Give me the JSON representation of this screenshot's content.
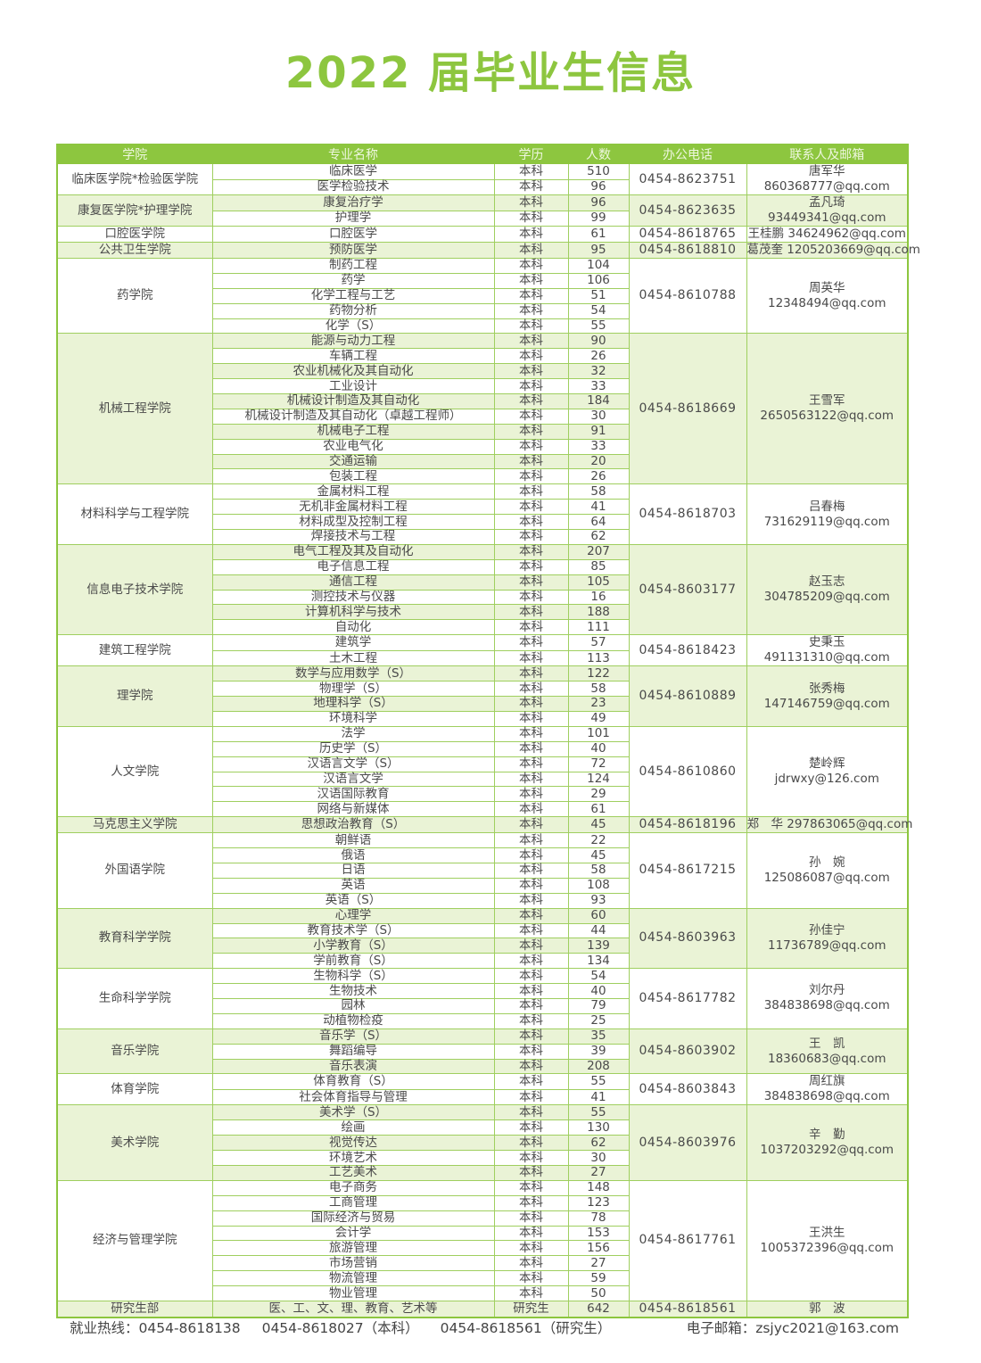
{
  "title": "2022 届毕业生信息",
  "colors": {
    "accent": "#8dc63f",
    "row_tint": "#eaf3d6"
  },
  "headers": [
    "学院",
    "专业名称",
    "学历",
    "人数",
    "办公电话",
    "联系人及邮箱"
  ],
  "groups": [
    {
      "college": "临床医学院*检验医学院",
      "phone": "0454-8623751",
      "contact": "唐军华",
      "email": "860368777@qq.com",
      "majors": [
        [
          "临床医学",
          "本科",
          "510"
        ],
        [
          "医学检验技术",
          "本科",
          "96"
        ]
      ]
    },
    {
      "college": "康复医学院*护理学院",
      "phone": "0454-8623635",
      "contact": "孟凡琦",
      "email": "93449341@qq.com",
      "majors": [
        [
          "康复治疗学",
          "本科",
          "96"
        ],
        [
          "护理学",
          "本科",
          "99"
        ]
      ]
    },
    {
      "college": "口腔医学院",
      "phone": "0454-8618765",
      "contact": "王桂鹏 34624962@qq.com",
      "email": "",
      "majors": [
        [
          "口腔医学",
          "本科",
          "61"
        ]
      ]
    },
    {
      "college": "公共卫生学院",
      "phone": "0454-8618810",
      "contact": "葛茂奎 1205203669@qq.com",
      "email": "",
      "majors": [
        [
          "预防医学",
          "本科",
          "95"
        ]
      ]
    },
    {
      "college": "药学院",
      "phone": "0454-8610788",
      "contact": "周英华",
      "email": "12348494@qq.com",
      "majors": [
        [
          "制药工程",
          "本科",
          "104"
        ],
        [
          "药学",
          "本科",
          "106"
        ],
        [
          "化学工程与工艺",
          "本科",
          "51"
        ],
        [
          "药物分析",
          "本科",
          "54"
        ],
        [
          "化学（S）",
          "本科",
          "55"
        ]
      ]
    },
    {
      "college": "机械工程学院",
      "phone": "0454-8618669",
      "contact": "王雪军",
      "email": "2650563122@qq.com",
      "majors": [
        [
          "能源与动力工程",
          "本科",
          "90"
        ],
        [
          "车辆工程",
          "本科",
          "26"
        ],
        [
          "农业机械化及其自动化",
          "本科",
          "32"
        ],
        [
          "工业设计",
          "本科",
          "33"
        ],
        [
          "机械设计制造及其自动化",
          "本科",
          "184"
        ],
        [
          "机械设计制造及其自动化（卓越工程师）",
          "本科",
          "30"
        ],
        [
          "机械电子工程",
          "本科",
          "91"
        ],
        [
          "农业电气化",
          "本科",
          "33"
        ],
        [
          "交通运输",
          "本科",
          "20"
        ],
        [
          "包装工程",
          "本科",
          "26"
        ]
      ]
    },
    {
      "college": "材料科学与工程学院",
      "phone": "0454-8618703",
      "contact": "吕春梅",
      "email": "731629119@qq.com",
      "majors": [
        [
          "金属材料工程",
          "本科",
          "58"
        ],
        [
          "无机非金属材料工程",
          "本科",
          "41"
        ],
        [
          "材料成型及控制工程",
          "本科",
          "64"
        ],
        [
          "焊接技术与工程",
          "本科",
          "62"
        ]
      ]
    },
    {
      "college": "信息电子技术学院",
      "phone": "0454-8603177",
      "contact": "赵玉志",
      "email": "304785209@qq.com",
      "majors": [
        [
          "电气工程及其及自动化",
          "本科",
          "207"
        ],
        [
          "电子信息工程",
          "本科",
          "85"
        ],
        [
          "通信工程",
          "本科",
          "105"
        ],
        [
          "测控技术与仪器",
          "本科",
          "16"
        ],
        [
          "计算机科学与技术",
          "本科",
          "188"
        ],
        [
          "自动化",
          "本科",
          "111"
        ]
      ]
    },
    {
      "college": "建筑工程学院",
      "phone": "0454-8618423",
      "contact": "史秉玉",
      "email": "491131310@qq.com",
      "majors": [
        [
          "建筑学",
          "本科",
          "57"
        ],
        [
          "土木工程",
          "本科",
          "113"
        ]
      ]
    },
    {
      "college": "理学院",
      "phone": "0454-8610889",
      "contact": "张秀梅",
      "email": "147146759@qq.com",
      "majors": [
        [
          "数学与应用数学（S）",
          "本科",
          "122"
        ],
        [
          "物理学（S）",
          "本科",
          "58"
        ],
        [
          "地理科学（S）",
          "本科",
          "23"
        ],
        [
          "环境科学",
          "本科",
          "49"
        ]
      ]
    },
    {
      "college": "人文学院",
      "phone": "0454-8610860",
      "contact": "楚岭辉",
      "email": "jdrwxy@126.com",
      "majors": [
        [
          "法学",
          "本科",
          "101"
        ],
        [
          "历史学（S）",
          "本科",
          "40"
        ],
        [
          "汉语言文学（S）",
          "本科",
          "72"
        ],
        [
          "汉语言文学",
          "本科",
          "124"
        ],
        [
          "汉语国际教育",
          "本科",
          "29"
        ],
        [
          "网络与新媒体",
          "本科",
          "61"
        ]
      ]
    },
    {
      "college": "马克思主义学院",
      "phone": "0454-8618196",
      "contact": "郑　华 297863065@qq.com",
      "email": "",
      "majors": [
        [
          "思想政治教育（S）",
          "本科",
          "45"
        ]
      ]
    },
    {
      "college": "外国语学院",
      "phone": "0454-8617215",
      "contact": "孙　婉",
      "email": "125086087@qq.com",
      "majors": [
        [
          "朝鲜语",
          "本科",
          "22"
        ],
        [
          "俄语",
          "本科",
          "45"
        ],
        [
          "日语",
          "本科",
          "58"
        ],
        [
          "英语",
          "本科",
          "108"
        ],
        [
          "英语（S）",
          "本科",
          "93"
        ]
      ]
    },
    {
      "college": "教育科学学院",
      "phone": "0454-8603963",
      "contact": "孙佳宁",
      "email": "11736789@qq.com",
      "majors": [
        [
          "心理学",
          "本科",
          "60"
        ],
        [
          "教育技术学（S）",
          "本科",
          "44"
        ],
        [
          "小学教育（S）",
          "本科",
          "139"
        ],
        [
          "学前教育（S）",
          "本科",
          "134"
        ]
      ]
    },
    {
      "college": "生命科学学院",
      "phone": "0454-8617782",
      "contact": "刘尔丹",
      "email": "384838698@qq.com",
      "majors": [
        [
          "生物科学（S）",
          "本科",
          "54"
        ],
        [
          "生物技术",
          "本科",
          "40"
        ],
        [
          "园林",
          "本科",
          "79"
        ],
        [
          "动植物检疫",
          "本科",
          "25"
        ]
      ]
    },
    {
      "college": "音乐学院",
      "phone": "0454-8603902",
      "contact": "王　凯",
      "email": "18360683@qq.com",
      "majors": [
        [
          "音乐学（S）",
          "本科",
          "35"
        ],
        [
          "舞蹈编导",
          "本科",
          "39"
        ],
        [
          "音乐表演",
          "本科",
          "208"
        ]
      ]
    },
    {
      "college": "体育学院",
      "phone": "0454-8603843",
      "contact": "周红旗",
      "email": "384838698@qq.com",
      "majors": [
        [
          "体育教育（S）",
          "本科",
          "55"
        ],
        [
          "社会体育指导与管理",
          "本科",
          "41"
        ]
      ]
    },
    {
      "college": "美术学院",
      "phone": "0454-8603976",
      "contact": "辛　勤",
      "email": "1037203292@qq.com",
      "majors": [
        [
          "美术学（S）",
          "本科",
          "55"
        ],
        [
          "绘画",
          "本科",
          "130"
        ],
        [
          "视觉传达",
          "本科",
          "62"
        ],
        [
          "环境艺术",
          "本科",
          "30"
        ],
        [
          "工艺美术",
          "本科",
          "27"
        ]
      ]
    },
    {
      "college": "经济与管理学院",
      "phone": "0454-8617761",
      "contact": "王洪生",
      "email": "1005372396@qq.com",
      "majors": [
        [
          "电子商务",
          "本科",
          "148"
        ],
        [
          "工商管理",
          "本科",
          "123"
        ],
        [
          "国际经济与贸易",
          "本科",
          "78"
        ],
        [
          "会计学",
          "本科",
          "153"
        ],
        [
          "旅游管理",
          "本科",
          "156"
        ],
        [
          "市场营销",
          "本科",
          "27"
        ],
        [
          "物流管理",
          "本科",
          "59"
        ],
        [
          "物业管理",
          "本科",
          "50"
        ]
      ]
    },
    {
      "college": "研究生部",
      "phone": "0454-8618561",
      "contact": "郭　波",
      "email": "",
      "majors": [
        [
          "医、工、文、理、教育、艺术等",
          "研究生",
          "642"
        ]
      ]
    }
  ],
  "footer": {
    "hotline": "就业热线：0454-8618138",
    "undergrad": "0454-8618027（本科）",
    "graduate": "0454-8618561（研究生）",
    "email": "电子邮箱：zsjyc2021@163.com"
  }
}
